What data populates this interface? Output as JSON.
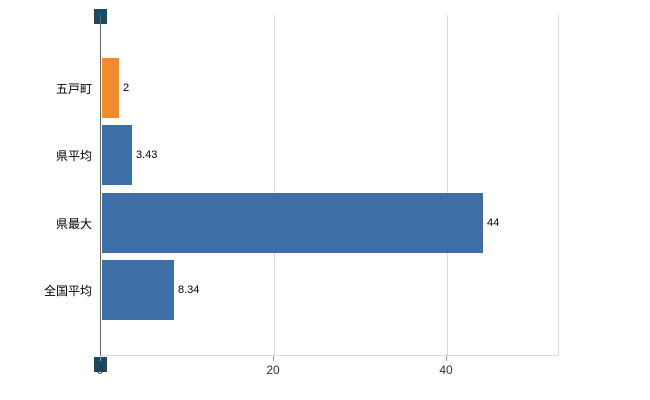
{
  "chart_data": {
    "type": "bar",
    "orientation": "horizontal",
    "title": "",
    "xlabel": "",
    "ylabel": "",
    "categories": [
      "五戸町",
      "県平均",
      "県最大",
      "全国平均"
    ],
    "values": [
      2,
      3.43,
      44,
      8.34
    ],
    "value_labels": [
      "2",
      "3.43",
      "44",
      "8.34"
    ],
    "bar_colors": [
      "#f08b2e",
      "#3d6fa6",
      "#3d6fa6",
      "#3d6fa6"
    ],
    "xlim": [
      0,
      52.8
    ],
    "x_ticks": [
      0,
      20,
      40
    ],
    "grid": true,
    "legend": false
  },
  "colors": {
    "background": "#ffffff",
    "axis_line": "#666666",
    "grid_line": "#d9d9d9",
    "tick_mark": "#999999",
    "text": "#000000",
    "scrollbar_grip": "#1a4a63"
  }
}
